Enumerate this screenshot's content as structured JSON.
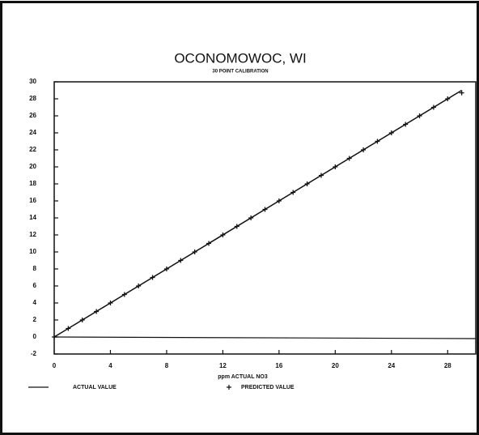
{
  "chart_data": {
    "type": "line",
    "title": "OCONOMOWOC, WI",
    "subtitle": "30 POINT CALIBRATION",
    "x_label": "ppm ACTUAL NO3",
    "xlim": [
      0,
      30
    ],
    "xticks": [
      0,
      4,
      8,
      12,
      16,
      20,
      24,
      28
    ],
    "ylim": [
      -2,
      30
    ],
    "yticks": [
      -2,
      0,
      2,
      4,
      6,
      8,
      10,
      12,
      14,
      16,
      18,
      20,
      22,
      24,
      26,
      28,
      30
    ],
    "series": [
      {
        "name": "ACTUAL VALUE",
        "marker": "line",
        "color": "#111111",
        "x": [
          0,
          29
        ],
        "values": [
          0,
          29
        ]
      },
      {
        "name": "PREDICTED VALUE",
        "marker": "+",
        "color": "#111111",
        "x": [
          0,
          1,
          2,
          3,
          4,
          5,
          6,
          7,
          8,
          9,
          10,
          11,
          12,
          13,
          14,
          15,
          16,
          17,
          18,
          19,
          20,
          21,
          22,
          23,
          24,
          25,
          26,
          27,
          28,
          29
        ],
        "values": [
          0,
          1,
          2,
          3,
          4,
          5,
          6,
          7,
          8,
          9,
          10,
          11,
          12,
          13,
          14,
          15,
          16,
          17,
          18,
          19,
          20,
          21,
          22,
          23,
          24,
          25,
          26,
          27,
          28,
          28.7
        ]
      }
    ]
  }
}
